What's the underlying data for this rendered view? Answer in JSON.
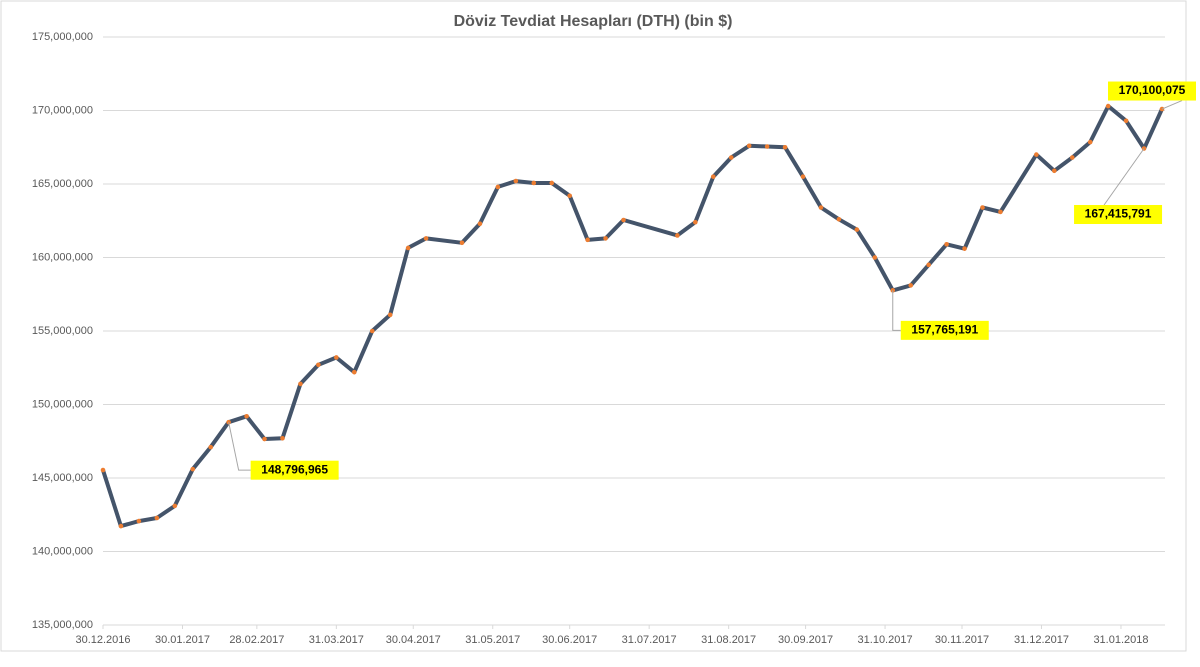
{
  "chart_data": {
    "type": "line",
    "title": "Döviz Tevdiat Hesapları (DTH) (bin $)",
    "x": [
      "30.12.2016",
      "06.01.2017",
      "13.01.2017",
      "20.01.2017",
      "27.01.2017",
      "03.02.2017",
      "10.02.2017",
      "17.02.2017",
      "24.02.2017",
      "03.03.2017",
      "10.03.2017",
      "17.03.2017",
      "24.03.2017",
      "31.03.2017",
      "07.04.2017",
      "14.04.2017",
      "21.04.2017",
      "28.04.2017",
      "05.05.2017",
      "19.05.2017",
      "26.05.2017",
      "02.06.2017",
      "09.06.2017",
      "16.06.2017",
      "23.06.2017",
      "30.06.2017",
      "07.07.2017",
      "14.07.2017",
      "21.07.2017",
      "11.08.2017",
      "18.08.2017",
      "25.08.2017",
      "01.09.2017",
      "08.09.2017",
      "15.09.2017",
      "22.09.2017",
      "29.09.2017",
      "06.10.2017",
      "13.10.2017",
      "20.10.2017",
      "27.10.2017",
      "03.11.2017",
      "10.11.2017",
      "17.11.2017",
      "24.11.2017",
      "01.12.2017",
      "08.12.2017",
      "15.12.2017",
      "29.12.2017",
      "05.01.2018",
      "12.01.2018",
      "19.01.2018",
      "26.01.2018",
      "02.02.2018",
      "09.02.2018",
      "16.02.2018"
    ],
    "series": [
      {
        "name": "DTH",
        "color": "#44546a",
        "marker_color": "#ed7d31",
        "values": [
          145540000,
          141730000,
          142070000,
          142280000,
          143100000,
          145600000,
          147100000,
          148796965,
          149200000,
          147650000,
          147700000,
          151400000,
          152700000,
          153200000,
          152200000,
          155000000,
          156100000,
          160650000,
          161300000,
          161000000,
          162300000,
          164800000,
          165200000,
          165070000,
          165070000,
          164200000,
          161200000,
          161300000,
          162550000,
          161500000,
          162400000,
          165500000,
          166800000,
          167600000,
          167550000,
          167500000,
          165500000,
          163400000,
          162600000,
          161900000,
          160000000,
          157765191,
          158100000,
          159500000,
          160900000,
          160600000,
          163400000,
          163100000,
          167000000,
          165900000,
          166800000,
          167850000,
          170300000,
          169300000,
          167415791,
          170100075
        ],
        "value_labels": [
          null,
          null,
          null,
          null,
          null,
          null,
          null,
          "148,796,965",
          null,
          null,
          null,
          null,
          null,
          null,
          null,
          null,
          null,
          null,
          null,
          null,
          null,
          null,
          null,
          null,
          null,
          null,
          null,
          null,
          null,
          null,
          null,
          null,
          null,
          null,
          null,
          null,
          null,
          null,
          null,
          null,
          null,
          "157,765,191",
          null,
          null,
          null,
          null,
          null,
          null,
          null,
          null,
          null,
          null,
          null,
          null,
          "167,415,791",
          "170,100,075"
        ]
      }
    ],
    "xlim": [
      "30.12.2016",
      "16.02.2018"
    ],
    "xticks": [
      "30.12.2016",
      "30.01.2017",
      "28.02.2017",
      "31.03.2017",
      "30.04.2017",
      "31.05.2017",
      "30.06.2017",
      "31.07.2017",
      "31.08.2017",
      "30.09.2017",
      "31.10.2017",
      "30.11.2017",
      "31.12.2017",
      "31.01.2018"
    ],
    "ylim": [
      135000000,
      175000000
    ],
    "yticks": [
      {
        "value": 135000000,
        "label": "135,000,000"
      },
      {
        "value": 140000000,
        "label": "140,000,000"
      },
      {
        "value": 145000000,
        "label": "145,000,000"
      },
      {
        "value": 150000000,
        "label": "150,000,000"
      },
      {
        "value": 155000000,
        "label": "155,000,000"
      },
      {
        "value": 160000000,
        "label": "160,000,000"
      },
      {
        "value": 165000000,
        "label": "165,000,000"
      },
      {
        "value": 170000000,
        "label": "170,000,000"
      },
      {
        "value": 175000000,
        "label": "175,000,000"
      }
    ],
    "grid": true
  }
}
